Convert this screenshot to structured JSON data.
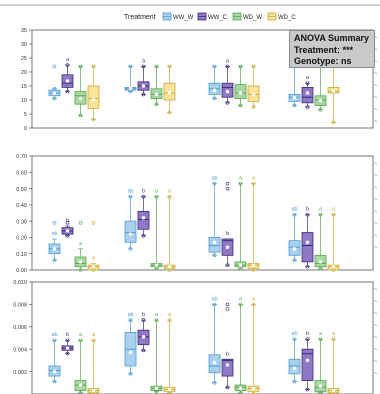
{
  "legend": {
    "title": "Treatment",
    "entries": [
      {
        "label": "WW_W",
        "fill": "#a9d1ee",
        "stroke": "#4f9bd0"
      },
      {
        "label": "WW_C",
        "fill": "#8f78c4",
        "stroke": "#3a2a7a"
      },
      {
        "label": "WD_W",
        "fill": "#a7d8a2",
        "stroke": "#5aa552"
      },
      {
        "label": "WD_C",
        "fill": "#f7e39a",
        "stroke": "#c9ab3c"
      }
    ]
  },
  "annotation": {
    "title": "ANOVA Summary",
    "treatment": "Treatment: ***",
    "genotype": "Genotype: ns"
  },
  "chart_data": [
    {
      "type": "box",
      "ylim": [
        0,
        35
      ],
      "yticks": [
        "0",
        "5",
        "10",
        "15",
        "20",
        "25",
        "30",
        "35"
      ],
      "ytick_values": [
        0,
        5,
        10,
        15,
        20,
        25,
        30,
        35
      ],
      "groups": [
        {
          "boxes": [
            {
              "q1": 11.5,
              "med": 12.5,
              "q3": 13.5,
              "lo": 10.5,
              "hi": 14.0,
              "mean": 12.4,
              "pts": [
                10.5,
                14.0,
                22.0
              ],
              "label": ""
            },
            {
              "q1": 14.5,
              "med": 16.0,
              "q3": 19.0,
              "lo": 13.0,
              "hi": 22.5,
              "mean": 16.8,
              "pts": [
                13.0,
                22.5
              ],
              "label": "a"
            },
            {
              "q1": 8.5,
              "med": 11.5,
              "q3": 13.0,
              "lo": 4.5,
              "hi": 22.0,
              "mean": 10.5,
              "pts": [
                4.5,
                22.0
              ],
              "label": ""
            },
            {
              "q1": 7.0,
              "med": 10.5,
              "q3": 15.0,
              "lo": 3.0,
              "hi": 22.0,
              "mean": 10.2,
              "pts": [
                3.0,
                22.0
              ],
              "label": ""
            }
          ]
        },
        {
          "boxes": [
            {
              "q1": 13.5,
              "med": 14.0,
              "q3": 14.5,
              "lo": 13.0,
              "hi": 22.0,
              "mean": 14.2,
              "pts": [
                13.0,
                22.0
              ],
              "label": ""
            },
            {
              "q1": 13.5,
              "med": 15.0,
              "q3": 16.5,
              "lo": 12.0,
              "hi": 22.0,
              "mean": 15.0,
              "pts": [
                12.0,
                22.0
              ],
              "label": "a"
            },
            {
              "q1": 10.5,
              "med": 12.0,
              "q3": 14.0,
              "lo": 8.5,
              "hi": 22.0,
              "mean": 12.0,
              "pts": [
                8.5,
                22.0
              ],
              "label": ""
            },
            {
              "q1": 10.0,
              "med": 12.5,
              "q3": 16.0,
              "lo": 5.5,
              "hi": 22.0,
              "mean": 12.8,
              "pts": [
                5.5,
                22.0
              ],
              "label": ""
            }
          ]
        },
        {
          "boxes": [
            {
              "q1": 12.0,
              "med": 14.0,
              "q3": 16.0,
              "lo": 10.5,
              "hi": 22.0,
              "mean": 13.5,
              "pts": [
                10.5,
                22.0
              ],
              "label": ""
            },
            {
              "q1": 11.0,
              "med": 14.5,
              "q3": 16.0,
              "lo": 9.0,
              "hi": 22.0,
              "mean": 13.0,
              "pts": [
                9.0,
                22.0
              ],
              "label": "a"
            },
            {
              "q1": 10.5,
              "med": 12.5,
              "q3": 15.5,
              "lo": 8.0,
              "hi": 22.0,
              "mean": 12.5,
              "pts": [
                8.0,
                22.0
              ],
              "label": ""
            },
            {
              "q1": 9.5,
              "med": 12.0,
              "q3": 15.0,
              "lo": 7.5,
              "hi": 22.0,
              "mean": 12.0,
              "pts": [
                7.5,
                22.0
              ],
              "label": ""
            }
          ]
        },
        {
          "boxes": [
            {
              "q1": 9.5,
              "med": 11.0,
              "q3": 12.0,
              "lo": 8.0,
              "hi": 22.0,
              "mean": 10.8,
              "pts": [
                8.0,
                22.0
              ],
              "label": ""
            },
            {
              "q1": 9.0,
              "med": 11.0,
              "q3": 14.5,
              "lo": 7.5,
              "hi": 16.0,
              "mean": 12.5,
              "pts": [
                7.5,
                16.0
              ],
              "label": "a"
            },
            {
              "q1": 8.0,
              "med": 10.0,
              "q3": 11.5,
              "lo": 6.5,
              "hi": 22.0,
              "mean": 9.8,
              "pts": [
                6.5,
                22.0
              ],
              "label": ""
            },
            {
              "q1": 12.5,
              "med": 13.0,
              "q3": 14.5,
              "lo": 2.0,
              "hi": 22.0,
              "mean": 13.2,
              "pts": [
                2.0,
                22.0
              ],
              "label": ""
            }
          ]
        }
      ]
    },
    {
      "type": "box",
      "ylim": [
        0,
        0.7
      ],
      "yticks": [
        "0.00",
        "0.10",
        "0.20",
        "0.30",
        "0.40",
        "0.50",
        "0.60",
        "0.70"
      ],
      "ytick_values": [
        0,
        0.1,
        0.2,
        0.3,
        0.4,
        0.5,
        0.6,
        0.7
      ],
      "groups": [
        {
          "boxes": [
            {
              "q1": 0.1,
              "med": 0.13,
              "q3": 0.16,
              "lo": 0.06,
              "hi": 0.19,
              "mean": 0.13,
              "pts": [
                0.06,
                0.29
              ],
              "label": "ab"
            },
            {
              "q1": 0.22,
              "med": 0.24,
              "q3": 0.26,
              "lo": 0.21,
              "hi": 0.27,
              "mean": 0.24,
              "pts": [
                0.21,
                0.29
              ],
              "label": "b"
            },
            {
              "q1": 0.02,
              "med": 0.04,
              "q3": 0.08,
              "lo": 0.0,
              "hi": 0.13,
              "mean": 0.05,
              "pts": [
                0.0,
                0.29
              ],
              "label": "a"
            },
            {
              "q1": 0.0,
              "med": 0.02,
              "q3": 0.03,
              "lo": 0.0,
              "hi": 0.04,
              "mean": 0.02,
              "pts": [
                0.0,
                0.29
              ],
              "label": "a"
            }
          ]
        },
        {
          "boxes": [
            {
              "q1": 0.17,
              "med": 0.23,
              "q3": 0.3,
              "lo": 0.13,
              "hi": 0.45,
              "mean": 0.22,
              "pts": [
                0.13,
                0.45
              ],
              "label": "ab"
            },
            {
              "q1": 0.25,
              "med": 0.31,
              "q3": 0.36,
              "lo": 0.21,
              "hi": 0.45,
              "mean": 0.32,
              "pts": [
                0.21,
                0.45
              ],
              "label": "b"
            },
            {
              "q1": 0.02,
              "med": 0.03,
              "q3": 0.04,
              "lo": 0.01,
              "hi": 0.45,
              "mean": 0.03,
              "pts": [
                0.01,
                0.45
              ],
              "label": "a"
            },
            {
              "q1": 0.01,
              "med": 0.02,
              "q3": 0.03,
              "lo": 0.0,
              "hi": 0.45,
              "mean": 0.02,
              "pts": [
                0.0,
                0.45
              ],
              "label": "a"
            }
          ]
        },
        {
          "boxes": [
            {
              "q1": 0.11,
              "med": 0.15,
              "q3": 0.2,
              "lo": 0.09,
              "hi": 0.53,
              "mean": 0.17,
              "pts": [
                0.09,
                0.53
              ],
              "label": "ab"
            },
            {
              "q1": 0.09,
              "med": 0.18,
              "q3": 0.19,
              "lo": 0.03,
              "hi": 0.19,
              "mean": 0.14,
              "pts": [
                0.03,
                0.5,
                0.53
              ],
              "label": "b"
            },
            {
              "q1": 0.02,
              "med": 0.03,
              "q3": 0.05,
              "lo": 0.01,
              "hi": 0.53,
              "mean": 0.03,
              "pts": [
                0.01,
                0.53
              ],
              "label": "a"
            },
            {
              "q1": 0.01,
              "med": 0.03,
              "q3": 0.04,
              "lo": 0.0,
              "hi": 0.53,
              "mean": 0.03,
              "pts": [
                0.0,
                0.53
              ],
              "label": "a"
            }
          ]
        },
        {
          "boxes": [
            {
              "q1": 0.09,
              "med": 0.14,
              "q3": 0.18,
              "lo": 0.06,
              "hi": 0.34,
              "mean": 0.13,
              "pts": [
                0.06,
                0.34
              ],
              "label": "ab"
            },
            {
              "q1": 0.05,
              "med": 0.15,
              "q3": 0.23,
              "lo": 0.02,
              "hi": 0.34,
              "mean": 0.17,
              "pts": [
                0.02,
                0.34
              ],
              "label": "b"
            },
            {
              "q1": 0.02,
              "med": 0.04,
              "q3": 0.09,
              "lo": 0.01,
              "hi": 0.34,
              "mean": 0.05,
              "pts": [
                0.01,
                0.34
              ],
              "label": "a"
            },
            {
              "q1": 0.0,
              "med": 0.02,
              "q3": 0.03,
              "lo": 0.0,
              "hi": 0.34,
              "mean": 0.02,
              "pts": [
                0.0,
                0.34
              ],
              "label": "a"
            }
          ]
        }
      ]
    },
    {
      "type": "box",
      "ylim": [
        0,
        0.01
      ],
      "yticks": [
        "0.002",
        "0.004",
        "0.006",
        "0.008",
        "0.010"
      ],
      "ytick_values": [
        0.002,
        0.004,
        0.006,
        0.008,
        0.01
      ],
      "groups": [
        {
          "boxes": [
            {
              "q1": 0.0016,
              "med": 0.0021,
              "q3": 0.0025,
              "lo": 0.0011,
              "hi": 0.0048,
              "mean": 0.002,
              "pts": [
                0.0011,
                0.0048
              ],
              "label": "ab"
            },
            {
              "q1": 0.0039,
              "med": 0.0041,
              "q3": 0.0043,
              "lo": 0.0036,
              "hi": 0.0048,
              "mean": 0.0041,
              "pts": [
                0.0036,
                0.0048
              ],
              "label": "b"
            },
            {
              "q1": 0.0003,
              "med": 0.0008,
              "q3": 0.0012,
              "lo": 0.0001,
              "hi": 0.0048,
              "mean": 0.0008,
              "pts": [
                0.0001,
                0.0048
              ],
              "label": "a"
            },
            {
              "q1": 0.0001,
              "med": 0.0003,
              "q3": 0.0005,
              "lo": 0.0,
              "hi": 0.0048,
              "mean": 0.0003,
              "pts": [
                0.0,
                0.0048
              ],
              "label": "a"
            }
          ]
        },
        {
          "boxes": [
            {
              "q1": 0.0025,
              "med": 0.004,
              "q3": 0.0055,
              "lo": 0.0018,
              "hi": 0.0066,
              "mean": 0.0037,
              "pts": [
                0.0018,
                0.0066
              ],
              "label": "ab"
            },
            {
              "q1": 0.0044,
              "med": 0.0051,
              "q3": 0.0057,
              "lo": 0.0039,
              "hi": 0.0066,
              "mean": 0.0051,
              "pts": [
                0.0039,
                0.0066
              ],
              "label": "b"
            },
            {
              "q1": 0.0003,
              "med": 0.0005,
              "q3": 0.0007,
              "lo": 0.0002,
              "hi": 0.0066,
              "mean": 0.0005,
              "pts": [
                0.0002,
                0.0066
              ],
              "label": "a"
            },
            {
              "q1": 0.0002,
              "med": 0.0004,
              "q3": 0.0006,
              "lo": 0.0001,
              "hi": 0.0066,
              "mean": 0.0004,
              "pts": [
                0.0001,
                0.0066
              ],
              "label": "a"
            }
          ]
        },
        {
          "boxes": [
            {
              "q1": 0.0019,
              "med": 0.0025,
              "q3": 0.0035,
              "lo": 0.001,
              "hi": 0.008,
              "mean": 0.0028,
              "pts": [
                0.001,
                0.008
              ],
              "label": "ab"
            },
            {
              "q1": 0.0016,
              "med": 0.003,
              "q3": 0.0031,
              "lo": 0.0006,
              "hi": 0.0031,
              "mean": 0.0026,
              "pts": [
                0.0006,
                0.0076,
                0.008
              ],
              "label": "b"
            },
            {
              "q1": 0.0003,
              "med": 0.0006,
              "q3": 0.0008,
              "lo": 0.0001,
              "hi": 0.008,
              "mean": 0.0005,
              "pts": [
                0.0001,
                0.008
              ],
              "label": "a"
            },
            {
              "q1": 0.0002,
              "med": 0.0005,
              "q3": 0.0007,
              "lo": 0.0,
              "hi": 0.008,
              "mean": 0.0005,
              "pts": [
                0.0,
                0.008
              ],
              "label": "a"
            }
          ]
        },
        {
          "boxes": [
            {
              "q1": 0.0018,
              "med": 0.0025,
              "q3": 0.0031,
              "lo": 0.0011,
              "hi": 0.0049,
              "mean": 0.0023,
              "pts": [
                0.0011,
                0.0049
              ],
              "label": "ab"
            },
            {
              "q1": 0.0012,
              "med": 0.0036,
              "q3": 0.004,
              "lo": 0.0004,
              "hi": 0.0049,
              "mean": 0.003,
              "pts": [
                0.0004,
                0.0049
              ],
              "label": "b"
            },
            {
              "q1": 0.0002,
              "med": 0.0006,
              "q3": 0.0012,
              "lo": 0.0001,
              "hi": 0.0049,
              "mean": 0.0007,
              "pts": [
                0.0001,
                0.0049
              ],
              "label": "a"
            },
            {
              "q1": 0.0001,
              "med": 0.0003,
              "q3": 0.0005,
              "lo": 0.0,
              "hi": 0.0049,
              "mean": 0.0003,
              "pts": [
                0.0,
                0.0049
              ],
              "label": "a"
            }
          ]
        }
      ]
    }
  ]
}
